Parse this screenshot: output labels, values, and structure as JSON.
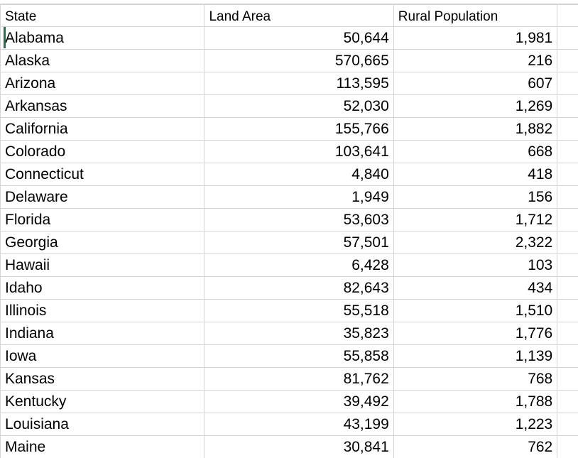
{
  "sheet": {
    "columns": [
      "State",
      "Land Area",
      "Rural Population"
    ],
    "rows": [
      {
        "state": "Alabama",
        "land_area": "50,644",
        "rural_population": "1,981"
      },
      {
        "state": "Alaska",
        "land_area": "570,665",
        "rural_population": "216"
      },
      {
        "state": "Arizona",
        "land_area": "113,595",
        "rural_population": "607"
      },
      {
        "state": "Arkansas",
        "land_area": "52,030",
        "rural_population": "1,269"
      },
      {
        "state": "California",
        "land_area": "155,766",
        "rural_population": "1,882"
      },
      {
        "state": "Colorado",
        "land_area": "103,641",
        "rural_population": "668"
      },
      {
        "state": "Connecticut",
        "land_area": "4,840",
        "rural_population": "418"
      },
      {
        "state": "Delaware",
        "land_area": "1,949",
        "rural_population": "156"
      },
      {
        "state": "Florida",
        "land_area": "53,603",
        "rural_population": "1,712"
      },
      {
        "state": "Georgia",
        "land_area": "57,501",
        "rural_population": "2,322"
      },
      {
        "state": "Hawaii",
        "land_area": "6,428",
        "rural_population": "103"
      },
      {
        "state": "Idaho",
        "land_area": "82,643",
        "rural_population": "434"
      },
      {
        "state": "Illinois",
        "land_area": "55,518",
        "rural_population": "1,510"
      },
      {
        "state": "Indiana",
        "land_area": "35,823",
        "rural_population": "1,776"
      },
      {
        "state": "Iowa",
        "land_area": "55,858",
        "rural_population": "1,139"
      },
      {
        "state": "Kansas",
        "land_area": "81,762",
        "rural_population": "768"
      },
      {
        "state": "Kentucky",
        "land_area": "39,492",
        "rural_population": "1,788"
      },
      {
        "state": "Louisiana",
        "land_area": "43,199",
        "rural_population": "1,223"
      },
      {
        "state": "Maine",
        "land_area": "30,841",
        "rural_population": "762"
      }
    ],
    "active_cell_color": "#217346",
    "gridline_color": "#d4d4d4"
  }
}
